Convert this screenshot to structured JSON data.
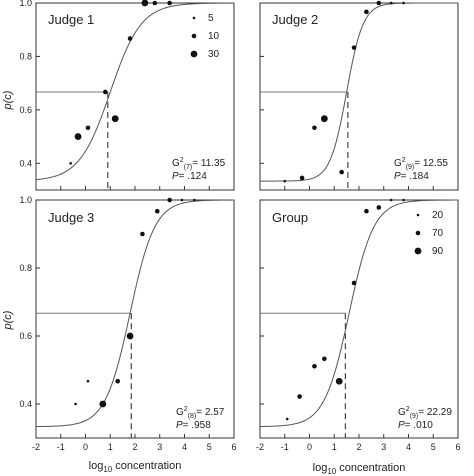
{
  "chart_data": [
    {
      "type": "scatter",
      "title": "Judge 1",
      "xlim": [
        -2,
        6
      ],
      "ylim": [
        0.3,
        1.0
      ],
      "xticks": [
        "-2",
        "-1",
        "0",
        "1",
        "2",
        "3",
        "4",
        "5",
        "6"
      ],
      "yticks": [
        "0.4",
        "0.6",
        "0.8",
        "1.0"
      ],
      "legend": {
        "title": "",
        "entries": [
          "5",
          "10",
          "30"
        ],
        "sizes": [
          5,
          10,
          30
        ],
        "position": "top-right"
      },
      "stats": {
        "g2_base": "G",
        "g2_sup": "2",
        "g2_sub": "(7)",
        "g2_value": "= 11.35",
        "p_label": "P",
        "p_value": "= .124"
      },
      "threshold": {
        "x": 0.9,
        "p": 0.667
      },
      "curve": {
        "midpoint": 1.0,
        "slope": 1.6
      },
      "points": [
        {
          "x": -0.6,
          "y": 0.4,
          "n": 5
        },
        {
          "x": -0.3,
          "y": 0.5,
          "n": 30
        },
        {
          "x": 0.1,
          "y": 0.533,
          "n": 10
        },
        {
          "x": 0.8,
          "y": 0.667,
          "n": 10
        },
        {
          "x": 1.2,
          "y": 0.567,
          "n": 30
        },
        {
          "x": 1.8,
          "y": 0.867,
          "n": 10
        },
        {
          "x": 2.4,
          "y": 1.0,
          "n": 30
        },
        {
          "x": 2.8,
          "y": 1.0,
          "n": 10
        },
        {
          "x": 3.4,
          "y": 1.0,
          "n": 10
        }
      ]
    },
    {
      "type": "scatter",
      "title": "Judge 2",
      "xlim": [
        -2,
        6
      ],
      "ylim": [
        0.3,
        1.0
      ],
      "xticks": [
        "-2",
        "-1",
        "0",
        "1",
        "2",
        "3",
        "4",
        "5",
        "6"
      ],
      "yticks": [
        "0.4",
        "0.6",
        "0.8",
        "1.0"
      ],
      "legend": null,
      "stats": {
        "g2_base": "G",
        "g2_sup": "2",
        "g2_sub": "(9)",
        "g2_value": "= 12.55",
        "p_label": "P",
        "p_value": "= .184"
      },
      "threshold": {
        "x": 1.55,
        "p": 0.667
      },
      "curve": {
        "midpoint": 1.5,
        "slope": 3.0
      },
      "points": [
        {
          "x": -1.0,
          "y": 0.333,
          "n": 5
        },
        {
          "x": -0.3,
          "y": 0.345,
          "n": 10
        },
        {
          "x": 0.2,
          "y": 0.533,
          "n": 10
        },
        {
          "x": 0.6,
          "y": 0.567,
          "n": 30
        },
        {
          "x": 1.3,
          "y": 0.367,
          "n": 10
        },
        {
          "x": 1.8,
          "y": 0.833,
          "n": 10
        },
        {
          "x": 2.3,
          "y": 0.967,
          "n": 10
        },
        {
          "x": 2.8,
          "y": 1.0,
          "n": 10
        },
        {
          "x": 3.3,
          "y": 1.0,
          "n": 5
        },
        {
          "x": 3.8,
          "y": 1.0,
          "n": 5
        }
      ]
    },
    {
      "type": "scatter",
      "title": "Judge 3",
      "xlim": [
        -2,
        6
      ],
      "ylim": [
        0.3,
        1.0
      ],
      "xticks": [
        "-2",
        "-1",
        "0",
        "1",
        "2",
        "3",
        "4",
        "5",
        "6"
      ],
      "yticks": [
        "0.4",
        "0.6",
        "0.8",
        "1.0"
      ],
      "legend": null,
      "stats": {
        "g2_base": "G",
        "g2_sup": "2",
        "g2_sub": "(8)",
        "g2_value": "= 2.57",
        "p_label": "P",
        "p_value": "= .958"
      },
      "threshold": {
        "x": 1.85,
        "p": 0.667
      },
      "curve": {
        "midpoint": 1.8,
        "slope": 2.0
      },
      "points": [
        {
          "x": -0.4,
          "y": 0.4,
          "n": 5
        },
        {
          "x": 0.1,
          "y": 0.467,
          "n": 5
        },
        {
          "x": 0.7,
          "y": 0.4,
          "n": 30
        },
        {
          "x": 1.3,
          "y": 0.467,
          "n": 10
        },
        {
          "x": 1.8,
          "y": 0.6,
          "n": 30
        },
        {
          "x": 2.3,
          "y": 0.9,
          "n": 10
        },
        {
          "x": 2.9,
          "y": 0.967,
          "n": 10
        },
        {
          "x": 3.4,
          "y": 1.0,
          "n": 10
        },
        {
          "x": 3.9,
          "y": 1.0,
          "n": 5
        },
        {
          "x": 4.4,
          "y": 1.0,
          "n": 5
        }
      ]
    },
    {
      "type": "scatter",
      "title": "Group",
      "xlim": [
        -2,
        6
      ],
      "ylim": [
        0.3,
        1.0
      ],
      "xticks": [
        "-2",
        "-1",
        "0",
        "1",
        "2",
        "3",
        "4",
        "5",
        "6"
      ],
      "yticks": [
        "0.4",
        "0.6",
        "0.8",
        "1.0"
      ],
      "legend": {
        "title": "",
        "entries": [
          "20",
          "70",
          "90"
        ],
        "sizes": [
          20,
          70,
          90
        ],
        "position": "top-right"
      },
      "stats": {
        "g2_base": "G",
        "g2_sup": "2",
        "g2_sub": "(9)",
        "g2_value": "= 22.29",
        "p_label": "P",
        "p_value": "= .010"
      },
      "threshold": {
        "x": 1.45,
        "p": 0.667
      },
      "curve": {
        "midpoint": 1.6,
        "slope": 2.0
      },
      "points": [
        {
          "x": -0.9,
          "y": 0.356,
          "n": 20
        },
        {
          "x": -0.4,
          "y": 0.422,
          "n": 70
        },
        {
          "x": 0.2,
          "y": 0.511,
          "n": 70
        },
        {
          "x": 0.6,
          "y": 0.533,
          "n": 70
        },
        {
          "x": 1.2,
          "y": 0.467,
          "n": 90
        },
        {
          "x": 1.8,
          "y": 0.756,
          "n": 70
        },
        {
          "x": 2.3,
          "y": 0.967,
          "n": 70
        },
        {
          "x": 2.8,
          "y": 0.978,
          "n": 70
        },
        {
          "x": 3.3,
          "y": 1.0,
          "n": 20
        },
        {
          "x": 3.8,
          "y": 1.0,
          "n": 20
        }
      ]
    }
  ],
  "axes": {
    "ylabel_left": "p(c)",
    "xlabel_base": "log",
    "xlabel_sub": "10",
    "xlabel_tail": " concentration"
  }
}
